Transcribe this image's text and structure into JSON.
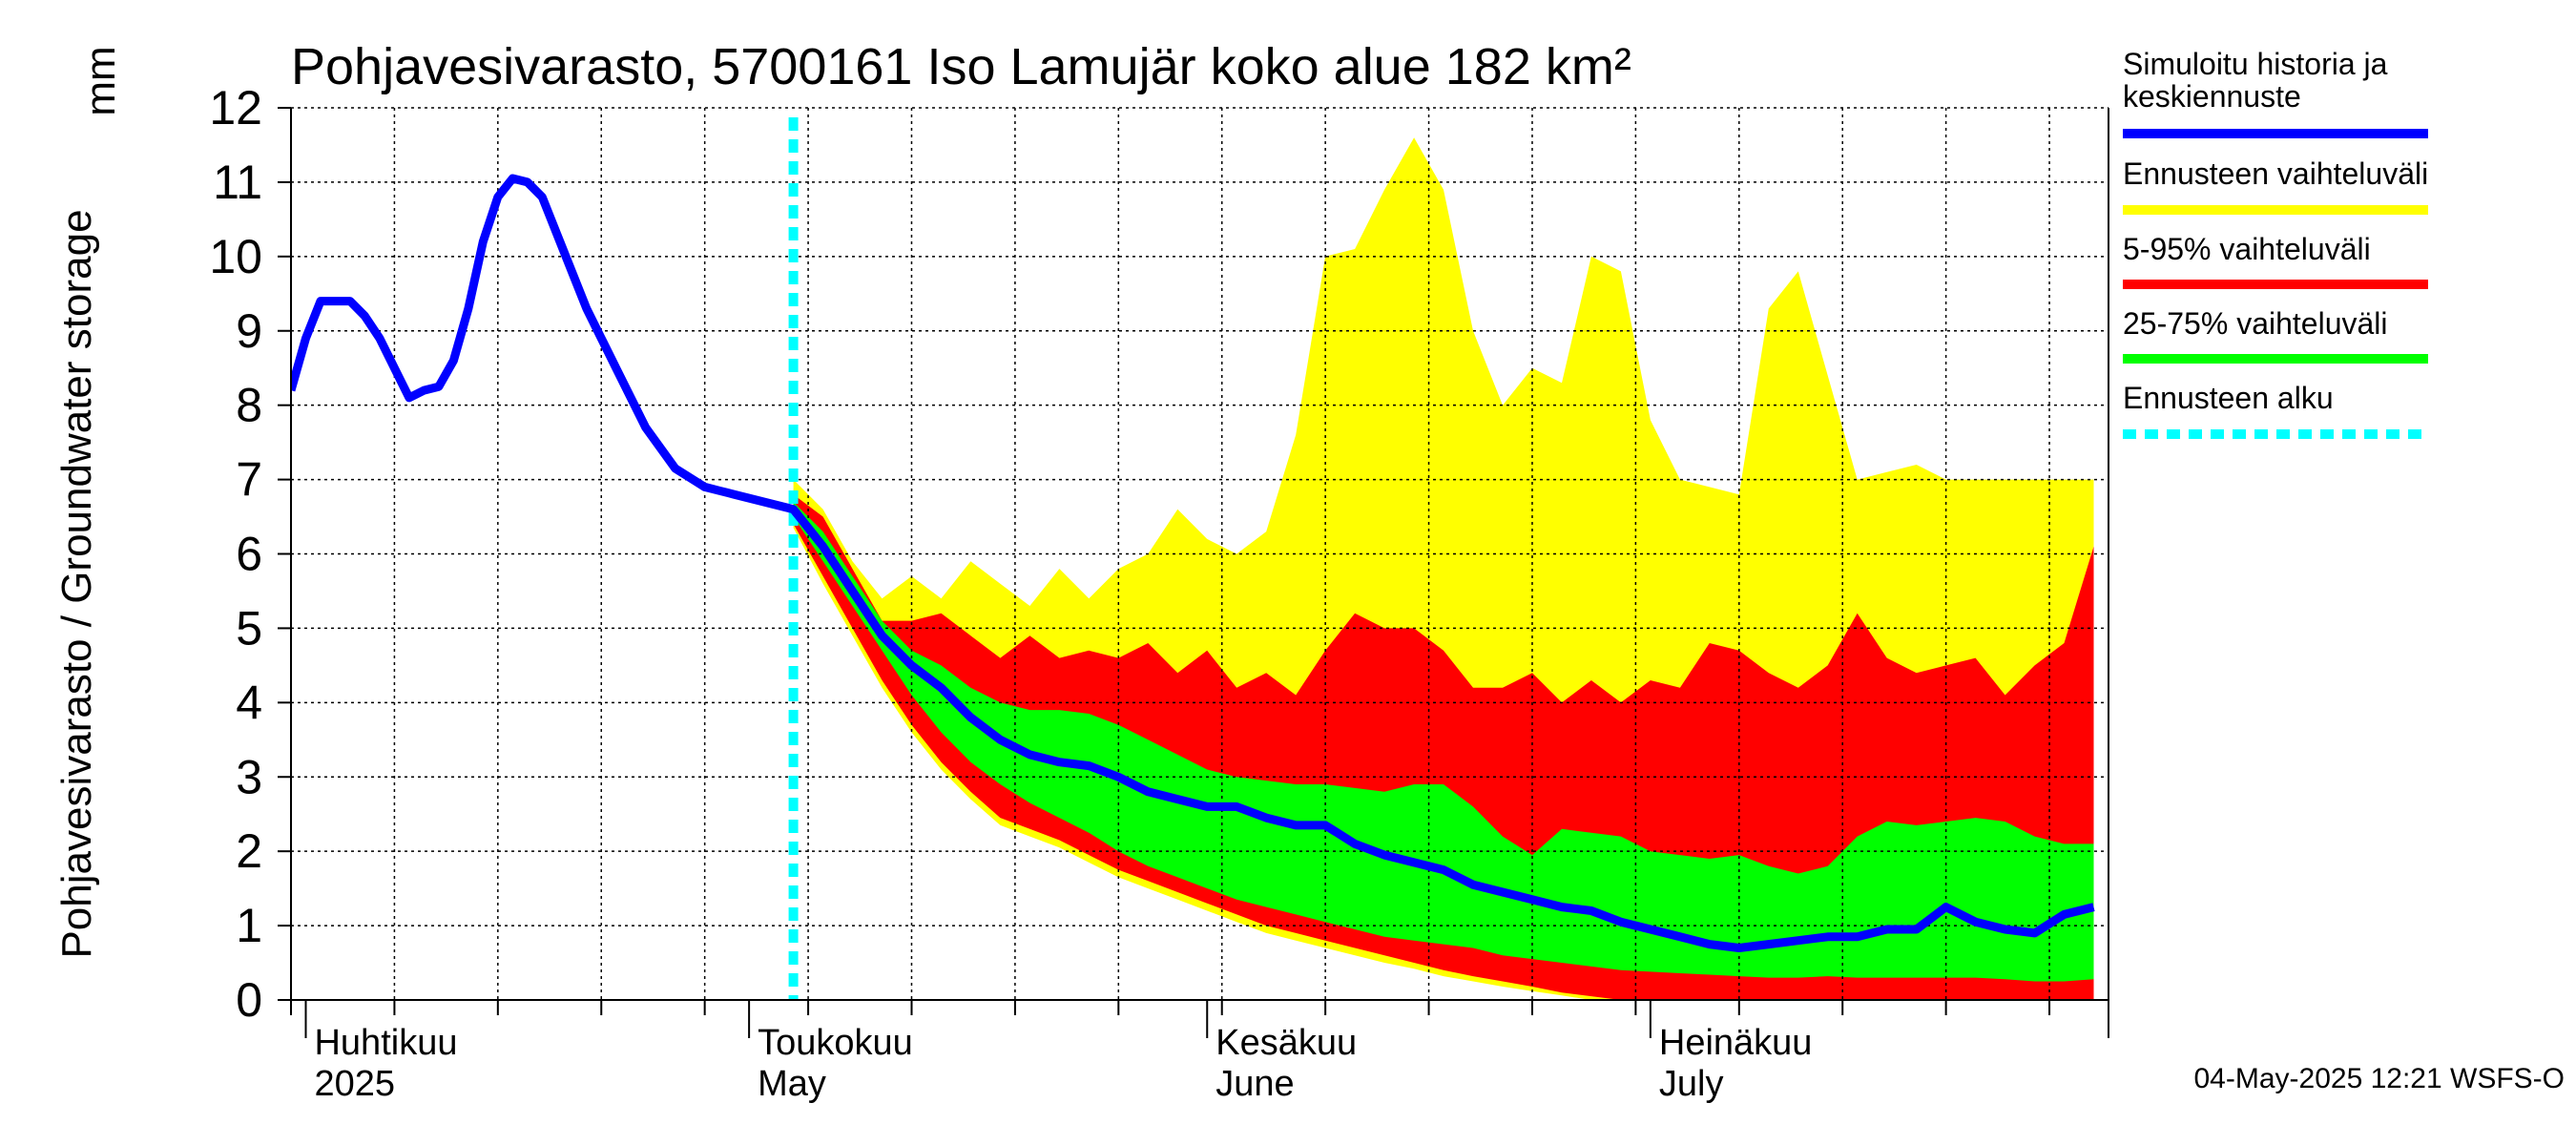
{
  "chart_data": {
    "type": "area",
    "title": "Pohjavesivarasto, 5700161 Iso Lamujär koko alue 182 km²",
    "ylabel": "Pohjavesivarasto / Groundwater storage",
    "unit": "mm",
    "ylim": [
      0,
      12
    ],
    "yticks": [
      0,
      1,
      2,
      3,
      4,
      5,
      6,
      7,
      8,
      9,
      10,
      11,
      12
    ],
    "grid": true,
    "legend_position": "right",
    "x_start": "2025-03-31",
    "x_end": "2025-08-01",
    "forecast_start": "2025-05-04",
    "month_labels": [
      {
        "date": "2025-04-01",
        "fi": "Huhtikuu",
        "en": "2025"
      },
      {
        "date": "2025-05-01",
        "fi": "Toukokuu",
        "en": "May"
      },
      {
        "date": "2025-06-01",
        "fi": "Kesäkuu",
        "en": "June"
      },
      {
        "date": "2025-07-01",
        "fi": "Heinäkuu",
        "en": "July"
      }
    ],
    "legend": [
      {
        "label": "Simuloitu historia ja keskiennuste",
        "color": "#0000ff",
        "style": "solid"
      },
      {
        "label": "Ennusteen vaihteluväli",
        "color": "#ffff00",
        "style": "solid"
      },
      {
        "label": "5-95% vaihteluväli",
        "color": "#ff0000",
        "style": "solid"
      },
      {
        "label": "25-75% vaihteluväli",
        "color": "#00ff00",
        "style": "solid"
      },
      {
        "label": "Ennusteen alku",
        "color": "#00ffff",
        "style": "dashed"
      }
    ],
    "history": {
      "name": "Simuloitu historia ja keskiennuste",
      "x": [
        "2025-03-31",
        "2025-04-01",
        "2025-04-02",
        "2025-04-03",
        "2025-04-04",
        "2025-04-05",
        "2025-04-06",
        "2025-04-07",
        "2025-04-08",
        "2025-04-09",
        "2025-04-10",
        "2025-04-11",
        "2025-04-12",
        "2025-04-13",
        "2025-04-14",
        "2025-04-15",
        "2025-04-16",
        "2025-04-17",
        "2025-04-18",
        "2025-04-19",
        "2025-04-20",
        "2025-04-21",
        "2025-04-22",
        "2025-04-24",
        "2025-04-26",
        "2025-04-28",
        "2025-04-29",
        "2025-04-30",
        "2025-05-01",
        "2025-05-02",
        "2025-05-03",
        "2025-05-04"
      ],
      "values": [
        8.2,
        8.9,
        9.4,
        9.4,
        9.4,
        9.2,
        8.9,
        8.5,
        8.1,
        8.2,
        8.25,
        8.6,
        9.3,
        10.2,
        10.8,
        11.05,
        11.0,
        10.8,
        10.3,
        9.8,
        9.3,
        8.9,
        8.5,
        7.7,
        7.15,
        6.9,
        6.85,
        6.8,
        6.75,
        6.7,
        6.65,
        6.6
      ]
    },
    "forecast": {
      "x": [
        "2025-05-04",
        "2025-05-06",
        "2025-05-08",
        "2025-05-10",
        "2025-05-12",
        "2025-05-14",
        "2025-05-16",
        "2025-05-18",
        "2025-05-20",
        "2025-05-22",
        "2025-05-24",
        "2025-05-26",
        "2025-05-28",
        "2025-05-30",
        "2025-06-01",
        "2025-06-03",
        "2025-06-05",
        "2025-06-07",
        "2025-06-09",
        "2025-06-11",
        "2025-06-13",
        "2025-06-15",
        "2025-06-17",
        "2025-06-19",
        "2025-06-21",
        "2025-06-23",
        "2025-06-25",
        "2025-06-27",
        "2025-06-29",
        "2025-07-01",
        "2025-07-03",
        "2025-07-05",
        "2025-07-07",
        "2025-07-09",
        "2025-07-11",
        "2025-07-13",
        "2025-07-15",
        "2025-07-17",
        "2025-07-19",
        "2025-07-21",
        "2025-07-23",
        "2025-07-25",
        "2025-07-27",
        "2025-07-29",
        "2025-07-31"
      ],
      "median": [
        6.6,
        6.1,
        5.5,
        4.9,
        4.5,
        4.2,
        3.8,
        3.5,
        3.3,
        3.2,
        3.15,
        3.0,
        2.8,
        2.7,
        2.6,
        2.6,
        2.45,
        2.35,
        2.35,
        2.1,
        1.95,
        1.85,
        1.75,
        1.55,
        1.45,
        1.35,
        1.25,
        1.2,
        1.05,
        0.95,
        0.85,
        0.75,
        0.7,
        0.75,
        0.8,
        0.85,
        0.85,
        0.95,
        0.95,
        1.25,
        1.05,
        0.95,
        0.9,
        1.15,
        1.25
      ],
      "p25": [
        6.5,
        5.9,
        5.3,
        4.7,
        4.1,
        3.6,
        3.2,
        2.9,
        2.65,
        2.45,
        2.25,
        2.0,
        1.8,
        1.65,
        1.5,
        1.35,
        1.25,
        1.15,
        1.05,
        0.95,
        0.85,
        0.8,
        0.75,
        0.7,
        0.6,
        0.55,
        0.5,
        0.45,
        0.4,
        0.38,
        0.36,
        0.34,
        0.32,
        0.3,
        0.3,
        0.32,
        0.3,
        0.3,
        0.3,
        0.3,
        0.3,
        0.28,
        0.25,
        0.25,
        0.28
      ],
      "p75": [
        6.7,
        6.3,
        5.7,
        5.1,
        4.7,
        4.5,
        4.2,
        4.0,
        3.9,
        3.9,
        3.85,
        3.7,
        3.5,
        3.3,
        3.1,
        3.0,
        2.95,
        2.9,
        2.9,
        2.85,
        2.8,
        2.9,
        2.9,
        2.6,
        2.2,
        1.95,
        2.3,
        2.25,
        2.2,
        2.0,
        1.95,
        1.9,
        1.95,
        1.8,
        1.7,
        1.8,
        2.2,
        2.4,
        2.35,
        2.4,
        2.45,
        2.4,
        2.2,
        2.1,
        2.1
      ],
      "p5": [
        6.4,
        5.7,
        5.0,
        4.3,
        3.7,
        3.2,
        2.8,
        2.45,
        2.3,
        2.15,
        1.95,
        1.75,
        1.6,
        1.45,
        1.3,
        1.15,
        1.0,
        0.9,
        0.8,
        0.7,
        0.6,
        0.5,
        0.4,
        0.32,
        0.25,
        0.18,
        0.1,
        0.05,
        0.0,
        0.0,
        0.0,
        0.0,
        0.0,
        0.0,
        0.0,
        0.0,
        0.0,
        0.0,
        0.0,
        0.0,
        0.0,
        0.0,
        0.0,
        0.0,
        0.0
      ],
      "p95": [
        6.8,
        6.5,
        5.8,
        5.1,
        5.1,
        5.2,
        4.9,
        4.6,
        4.9,
        4.6,
        4.7,
        4.6,
        4.8,
        4.4,
        4.7,
        4.2,
        4.4,
        4.1,
        4.7,
        5.2,
        5.0,
        5.0,
        4.7,
        4.2,
        4.2,
        4.4,
        4.0,
        4.3,
        4.0,
        4.3,
        4.2,
        4.8,
        4.7,
        4.4,
        4.2,
        4.5,
        5.2,
        4.6,
        4.4,
        4.5,
        4.6,
        4.1,
        4.5,
        4.8,
        6.1
      ],
      "min": [
        6.35,
        5.6,
        4.9,
        4.2,
        3.6,
        3.1,
        2.7,
        2.35,
        2.2,
        2.05,
        1.85,
        1.65,
        1.5,
        1.35,
        1.2,
        1.05,
        0.9,
        0.8,
        0.7,
        0.6,
        0.5,
        0.42,
        0.32,
        0.25,
        0.18,
        0.12,
        0.06,
        0.0,
        0.0,
        0.0,
        0.0,
        0.0,
        0.0,
        0.0,
        0.0,
        0.0,
        0.0,
        0.0,
        0.0,
        0.0,
        0.0,
        0.0,
        0.0,
        0.0,
        0.0
      ],
      "max": [
        7.0,
        6.6,
        5.9,
        5.4,
        5.7,
        5.4,
        5.9,
        5.6,
        5.3,
        5.8,
        5.4,
        5.8,
        6.0,
        6.6,
        6.2,
        6.0,
        6.3,
        7.6,
        10.0,
        10.1,
        10.9,
        11.6,
        10.9,
        9.0,
        8.0,
        8.5,
        8.3,
        10.0,
        9.8,
        7.8,
        7.0,
        6.9,
        6.8,
        9.3,
        9.8,
        8.4,
        7.0,
        7.1,
        7.2,
        7.0,
        7.0,
        7.0,
        7.0,
        7.0,
        7.0
      ]
    }
  },
  "footer": {
    "timestamp": "04-May-2025 12:21 WSFS-O"
  }
}
